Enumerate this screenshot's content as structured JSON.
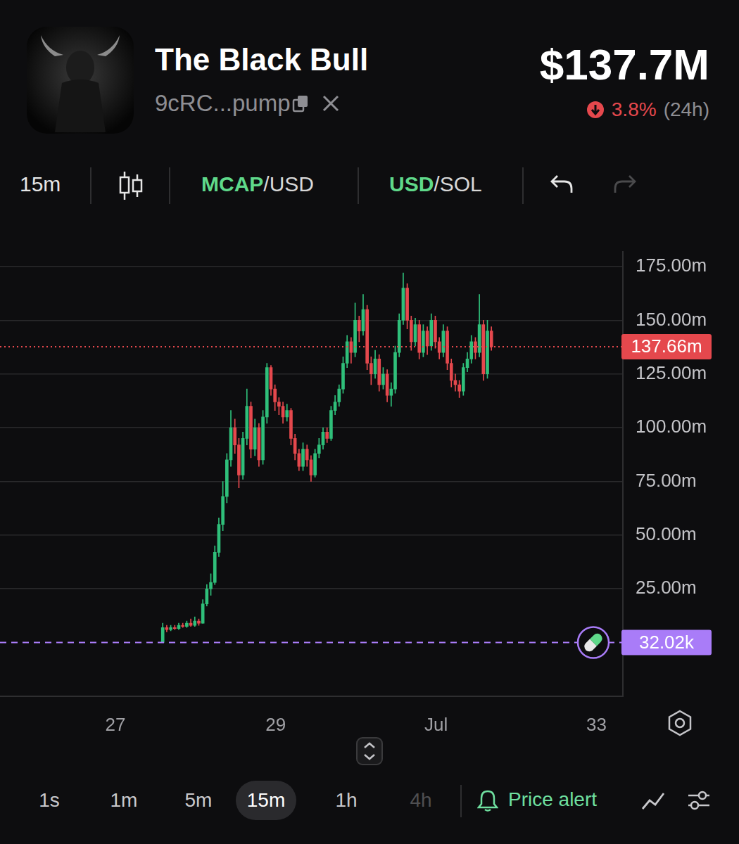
{
  "page": {
    "header": {
      "name": "The Black Bull",
      "address": "9cRC...pump",
      "market_cap": "$137.7M",
      "change": "3.8%",
      "change_period": "(24h)"
    },
    "toolbar": {
      "interval": "15m",
      "mode_a": [
        "MCAP",
        "/USD"
      ],
      "mode_b": [
        "USD",
        "/SOL"
      ]
    },
    "intervals": [
      "1s",
      "1m",
      "5m",
      "15m",
      "1h",
      "4h"
    ],
    "selected_interval": "15m",
    "dimmed_intervals": [
      "4h"
    ],
    "alert": "Price alert"
  },
  "chart_data": {
    "type": "candlestick",
    "x": [
      27.59,
      27.64,
      27.69,
      27.74,
      27.79,
      27.84,
      27.89,
      27.94,
      27.99,
      28.04,
      28.09,
      28.14,
      28.19,
      28.24,
      28.29,
      28.34,
      28.39,
      28.44,
      28.49,
      28.54,
      28.59,
      28.64,
      28.69,
      28.74,
      28.79,
      28.84,
      28.89,
      28.94,
      28.99,
      29.04,
      29.09,
      29.14,
      29.19,
      29.24,
      29.29,
      29.34,
      29.39,
      29.44,
      29.49,
      29.54,
      29.59,
      29.64,
      29.69,
      29.74,
      29.79,
      29.84,
      29.89,
      29.94,
      29.99,
      30.04,
      30.09,
      30.14,
      30.19,
      30.24,
      30.29,
      30.34,
      30.39,
      30.44,
      30.49,
      30.54,
      30.59,
      30.64,
      30.69,
      30.74,
      30.79,
      30.84,
      30.89,
      30.94,
      30.99,
      31.04,
      31.09,
      31.14,
      31.19,
      31.24,
      31.29,
      31.34,
      31.39,
      31.44,
      31.49,
      31.54,
      31.59,
      31.64,
      31.69
    ],
    "open": [
      0.03,
      7,
      6,
      7,
      6.5,
      8,
      7.5,
      9,
      8,
      10,
      9,
      18,
      25,
      28,
      42,
      55,
      68,
      85,
      100,
      92,
      78,
      95,
      110,
      90,
      100,
      85,
      105,
      128,
      118,
      112,
      110,
      105,
      108,
      95,
      88,
      82,
      90,
      85,
      78,
      88,
      92,
      98,
      95,
      108,
      112,
      118,
      130,
      140,
      135,
      150,
      145,
      155,
      130,
      125,
      132,
      120,
      125,
      115,
      118,
      135,
      150,
      165,
      150,
      140,
      148,
      135,
      145,
      138,
      150,
      140,
      135,
      145,
      130,
      122,
      120,
      117,
      128,
      132,
      140,
      135,
      148,
      125,
      145
    ],
    "high": [
      9,
      8,
      8,
      8,
      9,
      9,
      10,
      11,
      12,
      11,
      20,
      27,
      32,
      45,
      58,
      75,
      88,
      108,
      104,
      95,
      98,
      118,
      112,
      104,
      102,
      108,
      130,
      129,
      120,
      114,
      112,
      111,
      109,
      97,
      90,
      93,
      92,
      87,
      90,
      95,
      100,
      100,
      110,
      115,
      120,
      133,
      143,
      142,
      158,
      152,
      162,
      157,
      133,
      136,
      134,
      128,
      127,
      121,
      138,
      153,
      172,
      167,
      152,
      151,
      150,
      148,
      147,
      153,
      152,
      142,
      148,
      147,
      132,
      125,
      122,
      130,
      135,
      143,
      142,
      162,
      150,
      150,
      147
    ],
    "low": [
      0.03,
      5,
      5.5,
      6,
      6,
      7,
      7,
      7.5,
      7.5,
      8,
      9,
      17,
      22,
      27,
      40,
      52,
      65,
      82,
      88,
      72,
      76,
      92,
      86,
      87,
      82,
      83,
      102,
      115,
      108,
      106,
      102,
      103,
      92,
      85,
      80,
      80,
      82,
      75,
      77,
      86,
      90,
      93,
      94,
      106,
      110,
      116,
      128,
      130,
      133,
      140,
      143,
      127,
      120,
      123,
      117,
      118,
      112,
      110,
      116,
      133,
      148,
      146,
      136,
      138,
      132,
      133,
      134,
      136,
      137,
      132,
      133,
      127,
      119,
      117,
      114,
      115,
      126,
      130,
      132,
      133,
      122,
      123,
      136
    ],
    "close": [
      7,
      6,
      7,
      6.5,
      8,
      7.5,
      9,
      8,
      10,
      9,
      18,
      25,
      28,
      42,
      55,
      68,
      85,
      100,
      92,
      78,
      95,
      110,
      90,
      100,
      85,
      105,
      128,
      118,
      112,
      110,
      105,
      108,
      95,
      88,
      82,
      90,
      85,
      78,
      88,
      92,
      98,
      95,
      108,
      112,
      118,
      130,
      140,
      135,
      150,
      145,
      155,
      130,
      125,
      132,
      120,
      125,
      115,
      118,
      135,
      150,
      165,
      150,
      140,
      148,
      135,
      145,
      138,
      150,
      140,
      135,
      145,
      130,
      122,
      120,
      117,
      128,
      132,
      140,
      135,
      148,
      125,
      145,
      137.66
    ],
    "xlim": [
      25.56,
      33.33
    ],
    "xticks": [
      27,
      29,
      {
        "value": 31,
        "label": "Jul"
      },
      33
    ],
    "ylim": [
      -25,
      182
    ],
    "yticks": [
      {
        "value": 25,
        "label": "25.00m"
      },
      {
        "value": 50,
        "label": "50.00m"
      },
      {
        "value": 75,
        "label": "75.00m"
      },
      {
        "value": 100,
        "label": "100.00m"
      },
      {
        "value": 125,
        "label": "125.00m"
      },
      {
        "value": 150,
        "label": "150.00m"
      },
      {
        "value": 175,
        "label": "175.00m"
      }
    ],
    "grid": "y",
    "annotations": [
      {
        "value": 137.66,
        "label": "137.66m",
        "color": "#e5484d",
        "line_style": "dotted"
      },
      {
        "value": 0.03202,
        "label": "32.02k",
        "color": "#a97cf8",
        "line_style": "dashed"
      }
    ]
  }
}
